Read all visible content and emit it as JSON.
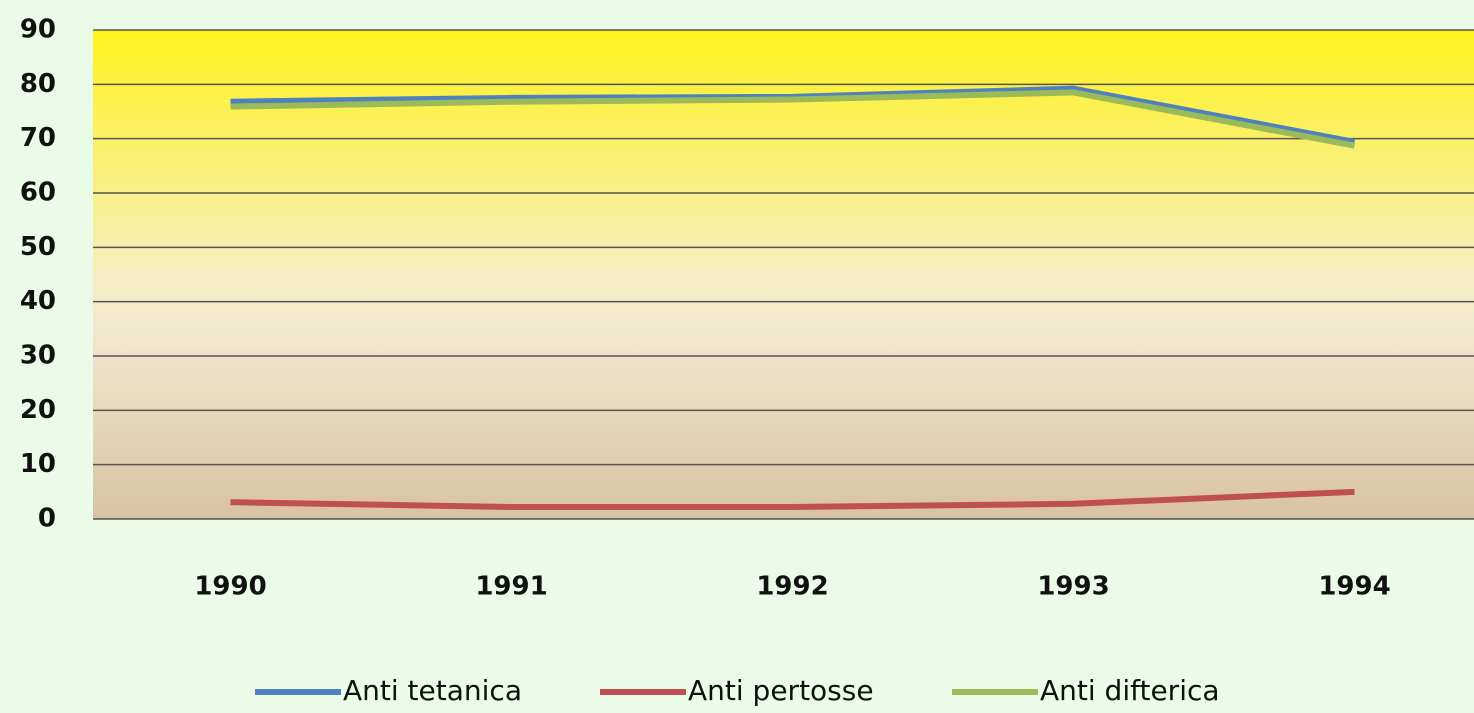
{
  "chart_data": {
    "type": "line",
    "categories": [
      "1990",
      "1991",
      "1992",
      "1993",
      "1994"
    ],
    "series": [
      {
        "name": "Anti tetanica",
        "color": "#4f81bd",
        "values": [
          76.8,
          77.5,
          77.7,
          79.2,
          69.4
        ]
      },
      {
        "name": "Anti pertosse",
        "color": "#c0504d",
        "values": [
          3.1,
          2.2,
          2.2,
          2.8,
          5.0
        ]
      },
      {
        "name": "Anti difterica",
        "color": "#9bbb59",
        "values": [
          75.9,
          76.8,
          77.2,
          78.5,
          68.7
        ]
      }
    ],
    "ylim": [
      0,
      90
    ],
    "yticks": [
      0,
      10,
      20,
      30,
      40,
      50,
      60,
      70,
      80,
      90
    ],
    "grid": true,
    "legend": "bottom"
  }
}
